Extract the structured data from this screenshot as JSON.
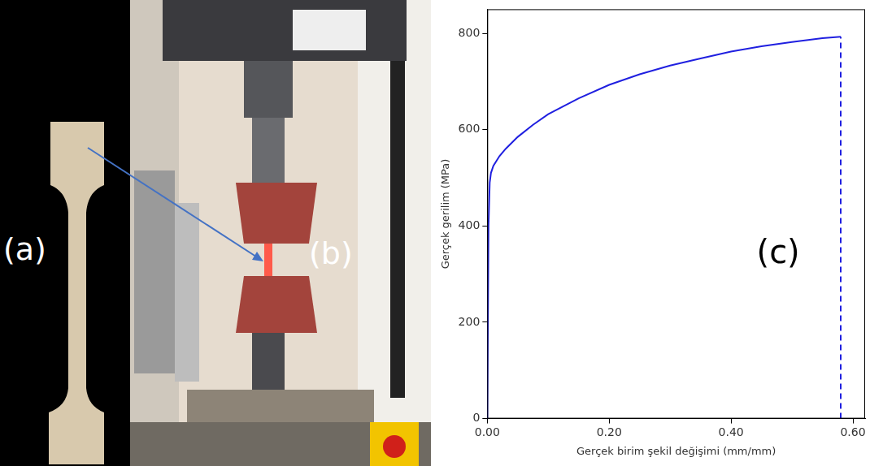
{
  "panels": {
    "a": {
      "label": "(a)"
    },
    "b": {
      "label": "(b)"
    }
  },
  "chart_data": {
    "type": "line",
    "label": "(c)",
    "x_label": "Gerçek birim şekil değişimi (mm/mm)",
    "y_label": "Gerçek gerilim (MPa)",
    "series": [
      {
        "color": "#2020e0",
        "line_style": "solid",
        "x": [
          0,
          0.002,
          0.004,
          0.006,
          0.01,
          0.02,
          0.03,
          0.05,
          0.075,
          0.1,
          0.15,
          0.2,
          0.25,
          0.3,
          0.35,
          0.4,
          0.45,
          0.5,
          0.55,
          0.58
        ],
        "values": [
          0,
          400,
          490,
          510,
          525,
          545,
          560,
          585,
          610,
          632,
          665,
          693,
          715,
          733,
          748,
          762,
          773,
          782,
          790,
          793
        ]
      },
      {
        "color": "#2020e0",
        "line_style": "dashed",
        "x": [
          0.58,
          0.58
        ],
        "values": [
          0,
          793
        ]
      }
    ],
    "xlim": [
      0,
      0.62
    ],
    "xticks": [
      {
        "value": 0,
        "label": "0.00"
      },
      {
        "value": 0.2,
        "label": "0.20"
      },
      {
        "value": 0.4,
        "label": "0.40"
      },
      {
        "value": 0.6,
        "label": "0.60"
      }
    ],
    "ylim": [
      0,
      850
    ],
    "yticks": [
      0,
      200,
      400,
      600,
      800
    ],
    "grid": false
  }
}
